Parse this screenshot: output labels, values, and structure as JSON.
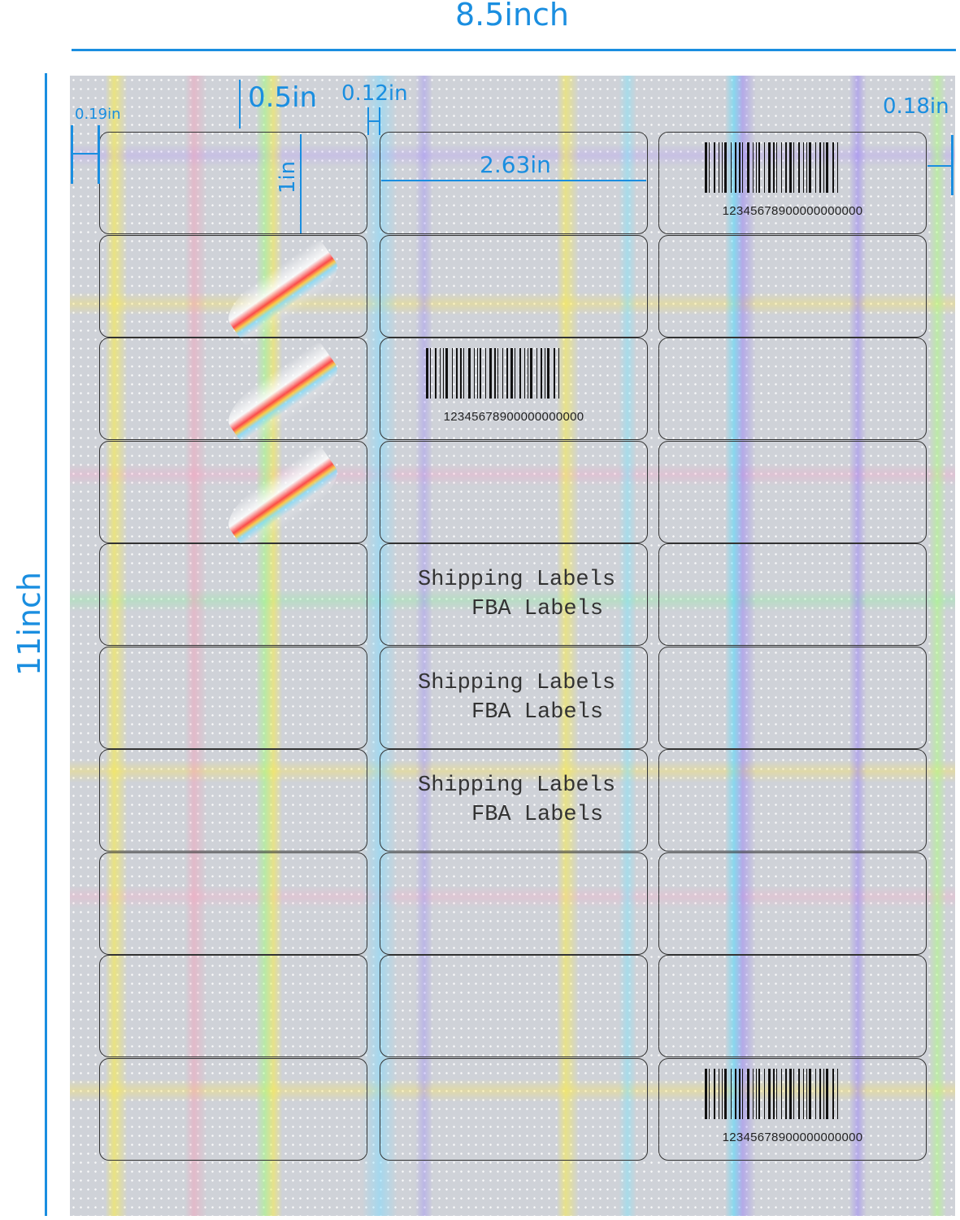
{
  "dimensions": {
    "sheet_width": "8.5inch",
    "sheet_height": "11inch",
    "top_margin": "0.5in",
    "left_margin": "0.19in",
    "right_margin": "0.18in",
    "column_gap": "0.12in",
    "label_width": "2.63in",
    "label_height": "1in"
  },
  "sheet": {
    "columns": 3,
    "rows": 10,
    "accent_color": "#1a8ee0",
    "barcode_text": "12345678900000000000",
    "sample_text_line1": "Shipping Labels",
    "sample_text_line2": "FBA Labels"
  }
}
